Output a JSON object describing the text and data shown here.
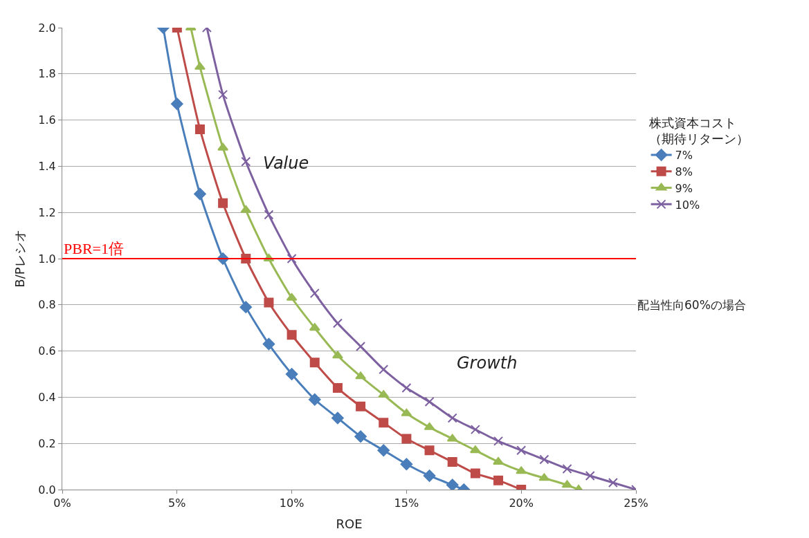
{
  "chart_data": {
    "type": "line",
    "xlabel": "ROE",
    "ylabel": "B/Pレシオ",
    "legend_title": "株式資本コスト（期待リターン）",
    "legend": "right",
    "grid": "y",
    "line_style": "solid",
    "xlim": [
      0,
      25
    ],
    "xticks": [
      {
        "value": 0,
        "label": "0%"
      },
      {
        "value": 5,
        "label": "5%"
      },
      {
        "value": 10,
        "label": "10%"
      },
      {
        "value": 15,
        "label": "15%"
      },
      {
        "value": 20,
        "label": "20%"
      },
      {
        "value": 25,
        "label": "25%"
      }
    ],
    "ylim": [
      0,
      2
    ],
    "yticks": [
      {
        "value": 0,
        "label": "0.0"
      },
      {
        "value": 0.2,
        "label": "0.2"
      },
      {
        "value": 0.4,
        "label": "0.4"
      },
      {
        "value": 0.6,
        "label": "0.6"
      },
      {
        "value": 0.8,
        "label": "0.8"
      },
      {
        "value": 1,
        "label": "1.0"
      },
      {
        "value": 1.2,
        "label": "1.2"
      },
      {
        "value": 1.4,
        "label": "1.4"
      },
      {
        "value": 1.6,
        "label": "1.6"
      },
      {
        "value": 1.8,
        "label": "1.8"
      },
      {
        "value": 2,
        "label": "2.0"
      }
    ],
    "series": [
      {
        "name": "7%",
        "color": "#4a7ebb",
        "marker": "diamond",
        "x": [
          4.4,
          5,
          6,
          7,
          8,
          9,
          10,
          11,
          12,
          13,
          14,
          15,
          16,
          17,
          17.5
        ],
        "values": [
          2.0,
          1.67,
          1.28,
          1.0,
          0.79,
          0.63,
          0.5,
          0.39,
          0.31,
          0.23,
          0.17,
          0.11,
          0.06,
          0.02,
          0.0
        ]
      },
      {
        "name": "8%",
        "color": "#be4b48",
        "marker": "square",
        "x": [
          5,
          6,
          7,
          8,
          9,
          10,
          11,
          12,
          13,
          14,
          15,
          16,
          17,
          18,
          19,
          20
        ],
        "values": [
          2.0,
          1.56,
          1.24,
          1.0,
          0.81,
          0.67,
          0.55,
          0.44,
          0.36,
          0.29,
          0.22,
          0.17,
          0.12,
          0.07,
          0.04,
          0.0
        ]
      },
      {
        "name": "9%",
        "color": "#98b954",
        "marker": "triangle",
        "x": [
          5.6,
          6,
          7,
          8,
          9,
          10,
          11,
          12,
          13,
          14,
          15,
          16,
          17,
          18,
          19,
          20,
          21,
          22,
          22.5
        ],
        "values": [
          2.0,
          1.83,
          1.48,
          1.21,
          1.0,
          0.83,
          0.7,
          0.58,
          0.49,
          0.41,
          0.33,
          0.27,
          0.22,
          0.17,
          0.12,
          0.08,
          0.05,
          0.02,
          0.0
        ]
      },
      {
        "name": "10%",
        "color": "#7d60a0",
        "marker": "cross",
        "x": [
          6.3,
          7,
          8,
          9,
          10,
          11,
          12,
          13,
          14,
          15,
          16,
          17,
          18,
          19,
          20,
          21,
          22,
          23,
          24,
          25
        ],
        "values": [
          2.0,
          1.71,
          1.42,
          1.19,
          1.0,
          0.85,
          0.72,
          0.62,
          0.52,
          0.44,
          0.38,
          0.31,
          0.26,
          0.21,
          0.17,
          0.13,
          0.09,
          0.06,
          0.03,
          0.0
        ]
      }
    ],
    "ref_lines": [
      {
        "axis": "y",
        "value": 1,
        "label": "PBR=1倍",
        "color": "#ff0000"
      }
    ],
    "annotations": [
      "Value",
      "Growth",
      "配当性向60%の場合"
    ]
  }
}
